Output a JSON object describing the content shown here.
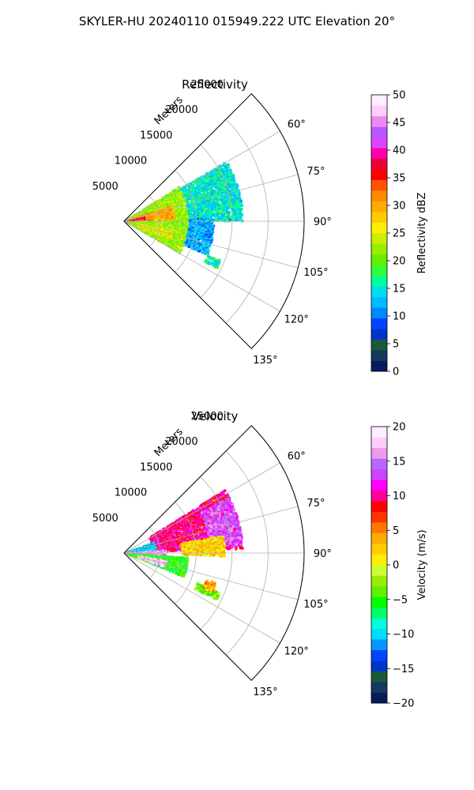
{
  "suptitle": "SKYLER-HU  20240110  015949.222 UTC Elevation 20°",
  "colors": {
    "reflectivity_stops": [
      "#0a1a5a",
      "#123a5a",
      "#1a5a3a",
      "#0033cc",
      "#0044ff",
      "#0088ff",
      "#00bbff",
      "#00ddee",
      "#00ff99",
      "#33ff33",
      "#66ee00",
      "#99ee00",
      "#ccee00",
      "#ffee00",
      "#ffcc00",
      "#ffaa00",
      "#ff8800",
      "#ff5500",
      "#ff0000",
      "#ee0033",
      "#ff00aa",
      "#dd44ff",
      "#bb55ff",
      "#ee88ee",
      "#ffccff",
      "#ffeeff"
    ],
    "velocity_stops": [
      "#0a1a5a",
      "#123a5a",
      "#1a5a3a",
      "#0033cc",
      "#0044ff",
      "#0099ff",
      "#00ddff",
      "#00ffdd",
      "#00ff66",
      "#00ff00",
      "#66ee00",
      "#99ee00",
      "#ccff33",
      "#ffee00",
      "#ffcc00",
      "#ffaa00",
      "#ff7700",
      "#ff3300",
      "#ff0000",
      "#ff0099",
      "#ff00ff",
      "#cc44ff",
      "#bb66ff",
      "#ee99ee",
      "#ffccff",
      "#ffeeff"
    ]
  },
  "chart_data": [
    {
      "type": "heatmap",
      "projection": "polar-sector",
      "title": "Reflectivity",
      "r_axis_label": "Meters",
      "r_ticks": [
        5000,
        10000,
        15000,
        20000,
        25000
      ],
      "r_tick_labels": [
        "5000",
        "10000",
        "15000",
        "20000",
        "25000"
      ],
      "rlim": [
        0,
        25000
      ],
      "theta_range_deg": [
        45,
        135
      ],
      "theta_ticks_deg": [
        60,
        75,
        90,
        105,
        120,
        135
      ],
      "theta_tick_labels": [
        "60°",
        "75°",
        "90°",
        "105°",
        "120°",
        "135°"
      ],
      "grid": true,
      "colorbar": {
        "label": "Reflectivity dBZ",
        "range": [
          0,
          50
        ],
        "ticks": [
          0,
          5,
          10,
          15,
          20,
          25,
          30,
          35,
          40,
          45,
          50
        ],
        "tick_labels": [
          "0",
          "5",
          "10",
          "15",
          "20",
          "25",
          "30",
          "35",
          "40",
          "45",
          "50"
        ]
      },
      "echo_regions": [
        {
          "az": [
            58,
            120
          ],
          "r": [
            300,
            9000
          ],
          "value": 22
        },
        {
          "az": [
            60,
            90
          ],
          "r": [
            9000,
            16500
          ],
          "value": 15
        },
        {
          "az": [
            72,
            88
          ],
          "r": [
            1000,
            7000
          ],
          "value": 30
        },
        {
          "az": [
            78,
            86
          ],
          "r": [
            200,
            3000
          ],
          "value": 37
        },
        {
          "az": [
            100,
            112
          ],
          "r": [
            2000,
            7000
          ],
          "value": 25
        },
        {
          "az": [
            88,
            112
          ],
          "r": [
            9000,
            12500
          ],
          "value": 12
        },
        {
          "az": [
            112,
            117
          ],
          "r": [
            12500,
            14500
          ],
          "value": 16
        }
      ]
    },
    {
      "type": "heatmap",
      "projection": "polar-sector",
      "title": "Velocity",
      "r_axis_label": "Meters",
      "r_ticks": [
        5000,
        10000,
        15000,
        20000,
        25000
      ],
      "r_tick_labels": [
        "5000",
        "10000",
        "15000",
        "20000",
        "25000"
      ],
      "rlim": [
        0,
        25000
      ],
      "theta_range_deg": [
        45,
        135
      ],
      "theta_ticks_deg": [
        60,
        75,
        90,
        105,
        120,
        135
      ],
      "theta_tick_labels": [
        "60°",
        "75°",
        "90°",
        "105°",
        "120°",
        "135°"
      ],
      "grid": true,
      "colorbar": {
        "label": "Velocity (m/s)",
        "range": [
          -20,
          20
        ],
        "ticks": [
          -20,
          -15,
          -10,
          -5,
          0,
          5,
          10,
          15,
          20
        ],
        "tick_labels": [
          "−20",
          "−15",
          "−10",
          "−5",
          "0",
          "5",
          "10",
          "15",
          "20"
        ]
      },
      "echo_regions": [
        {
          "az": [
            58,
            88
          ],
          "r": [
            4000,
            16500
          ],
          "value": 10
        },
        {
          "az": [
            62,
            86
          ],
          "r": [
            12000,
            16500
          ],
          "value": 14
        },
        {
          "az": [
            70,
            92
          ],
          "r": [
            300,
            4500
          ],
          "value": -10
        },
        {
          "az": [
            86,
            94
          ],
          "r": [
            300,
            6000
          ],
          "value": 16
        },
        {
          "az": [
            94,
            112
          ],
          "r": [
            300,
            9000
          ],
          "value": -5
        },
        {
          "az": [
            100,
            110
          ],
          "r": [
            2000,
            6000
          ],
          "value": 18
        },
        {
          "az": [
            80,
            92
          ],
          "r": [
            8000,
            14000
          ],
          "value": 2
        },
        {
          "az": [
            112,
            117
          ],
          "r": [
            11000,
            14500
          ],
          "value": -3
        },
        {
          "az": [
            108,
            114
          ],
          "r": [
            12000,
            13500
          ],
          "value": 4
        }
      ]
    }
  ]
}
